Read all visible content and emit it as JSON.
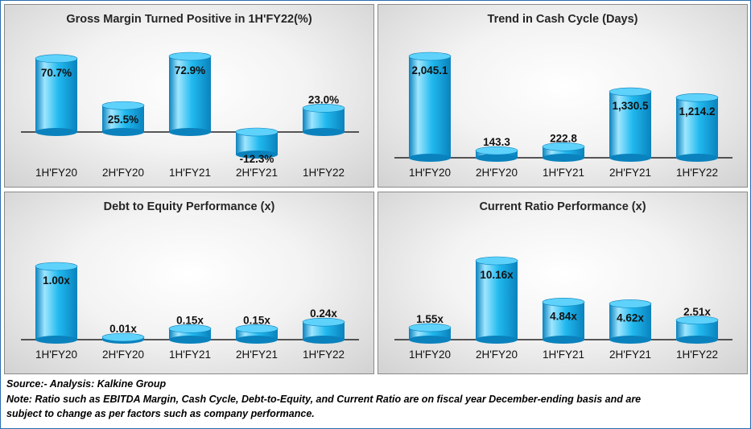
{
  "chart_data": [
    {
      "type": "bar",
      "title": "Gross Margin Turned Positive in 1H'FY22(%)",
      "categories": [
        "1H'FY20",
        "2H'FY20",
        "1H'FY21",
        "2H'FY21",
        "1H'FY22"
      ],
      "values": [
        70.7,
        25.5,
        72.9,
        -12.3,
        23.0
      ],
      "labels": [
        "70.7%",
        "25.5%",
        "72.9%",
        "-12.3%",
        "23.0%"
      ],
      "ylim": [
        -15,
        80
      ]
    },
    {
      "type": "bar",
      "title": "Trend in Cash Cycle (Days)",
      "categories": [
        "1H'FY20",
        "2H'FY20",
        "1H'FY21",
        "2H'FY21",
        "1H'FY22"
      ],
      "values": [
        2045.1,
        143.3,
        222.8,
        1330.5,
        1214.2
      ],
      "labels": [
        "2,045.1",
        "143.3",
        "222.8",
        "1,330.5",
        "1,214.2"
      ],
      "ylim": [
        0,
        2200
      ]
    },
    {
      "type": "bar",
      "title": "Debt to Equity Performance (x)",
      "categories": [
        "1H'FY20",
        "2H'FY20",
        "1H'FY21",
        "2H'FY21",
        "1H'FY22"
      ],
      "values": [
        1.0,
        0.01,
        0.15,
        0.15,
        0.24
      ],
      "labels": [
        "1.00x",
        "0.01x",
        "0.15x",
        "0.15x",
        "0.24x"
      ],
      "ylim": [
        0,
        1.1
      ]
    },
    {
      "type": "bar",
      "title": "Current Ratio Performance (x)",
      "categories": [
        "1H'FY20",
        "2H'FY20",
        "1H'FY21",
        "2H'FY21",
        "1H'FY22"
      ],
      "values": [
        1.55,
        10.16,
        4.84,
        4.62,
        2.51
      ],
      "labels": [
        "1.55x",
        "10.16x",
        "4.84x",
        "4.62x",
        "2.51x"
      ],
      "ylim": [
        0,
        11
      ]
    }
  ],
  "notes": {
    "source": "Source:- Analysis: Kalkine Group",
    "note_line1": "Note: Ratio such as EBITDA Margin, Cash Cycle, Debt-to-Equity, and Current Ratio are on fiscal year December-ending basis and are",
    "note_line2": "subject to change as per factors such as company performance."
  },
  "colors": {
    "bar_light": "#9fe6ff",
    "bar_mid": "#21b9ef",
    "bar_dark": "#0a82bd",
    "bar_top": "#5fd2fb",
    "axis": "#222222"
  }
}
